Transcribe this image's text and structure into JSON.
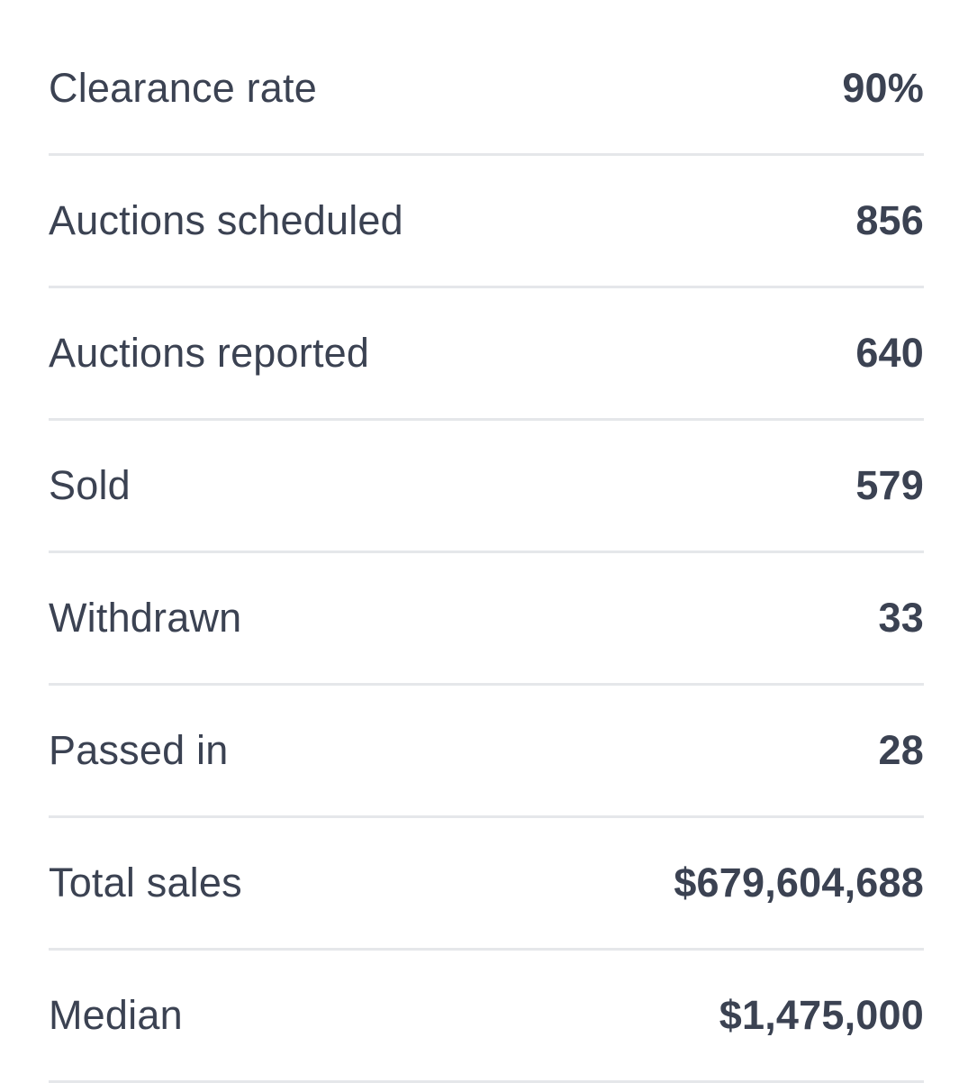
{
  "stats": [
    {
      "label": "Clearance rate",
      "value": "90%"
    },
    {
      "label": "Auctions scheduled",
      "value": "856"
    },
    {
      "label": "Auctions reported",
      "value": "640"
    },
    {
      "label": "Sold",
      "value": "579"
    },
    {
      "label": "Withdrawn",
      "value": "33"
    },
    {
      "label": "Passed in",
      "value": "28"
    },
    {
      "label": "Total sales",
      "value": "$679,604,688"
    },
    {
      "label": "Median",
      "value": "$1,475,000"
    }
  ]
}
